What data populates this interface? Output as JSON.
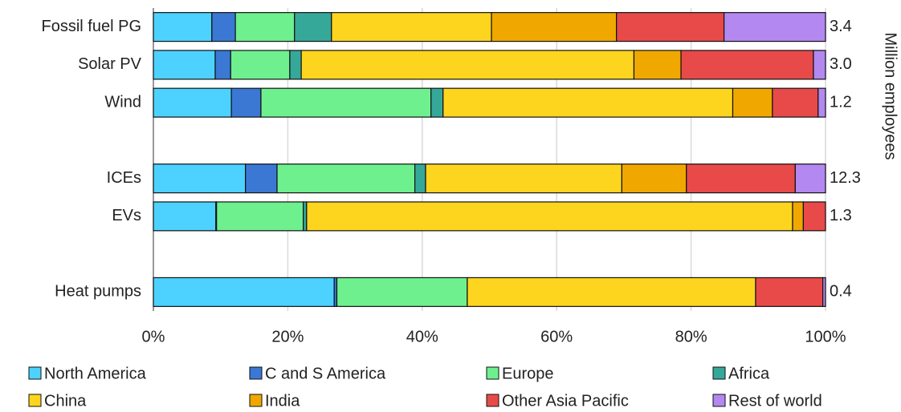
{
  "chart_data": {
    "type": "stacked-barh",
    "categories": [
      "Fossil fuel PG",
      "Solar PV",
      "Wind",
      null,
      "ICEs",
      "EVs",
      null,
      "Heat pumps"
    ],
    "series": [
      {
        "name": "North America",
        "color": "#4dd2ff",
        "values": [
          8.7,
          9.2,
          11.6,
          null,
          13.7,
          9.3,
          null,
          26.9
        ]
      },
      {
        "name": "C and S America",
        "color": "#3a78d4",
        "values": [
          3.5,
          2.3,
          4.4,
          null,
          4.7,
          0.1,
          null,
          0.4
        ]
      },
      {
        "name": "Europe",
        "color": "#6ef08f",
        "values": [
          8.8,
          8.8,
          25.3,
          null,
          20.5,
          12.9,
          null,
          19.4
        ]
      },
      {
        "name": "Africa",
        "color": "#36a89a",
        "values": [
          5.5,
          1.7,
          1.8,
          null,
          1.6,
          0.5,
          null,
          0
        ]
      },
      {
        "name": "China",
        "color": "#fdd51f",
        "values": [
          23.8,
          49.5,
          43.1,
          null,
          29.2,
          72.3,
          null,
          42.9
        ]
      },
      {
        "name": "India",
        "color": "#f0a800",
        "values": [
          18.6,
          7.0,
          5.9,
          null,
          9.6,
          1.6,
          null,
          0
        ]
      },
      {
        "name": "Other Asia Pacific",
        "color": "#e84a4a",
        "values": [
          16.0,
          19.7,
          6.8,
          null,
          16.2,
          3.3,
          null,
          10.0
        ]
      },
      {
        "name": "Rest of world",
        "color": "#b388f0",
        "values": [
          15.1,
          1.8,
          1.1,
          null,
          4.5,
          0,
          null,
          0.4
        ]
      }
    ],
    "xlim": [
      0,
      100
    ],
    "xticks": [
      {
        "value": 0,
        "label": "0%"
      },
      {
        "value": 20,
        "label": "20%"
      },
      {
        "value": 40,
        "label": "40%"
      },
      {
        "value": 60,
        "label": "60%"
      },
      {
        "value": 80,
        "label": "80%"
      },
      {
        "value": 100,
        "label": "100%"
      }
    ],
    "grid": true,
    "totals": {
      "label": "Million employees",
      "labels": [
        "3.4",
        "3.0",
        "1.2",
        null,
        "12.3",
        "1.3",
        null,
        "0.4"
      ]
    },
    "legend": "bottom"
  }
}
